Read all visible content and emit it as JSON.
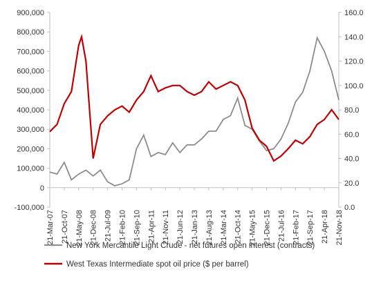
{
  "chart_data": {
    "type": "line",
    "title": "",
    "xlabel": "",
    "ylabel_left": "",
    "ylabel_right": "",
    "grid": false,
    "legend_position": "bottom",
    "x_ticks": [
      "21-Mar-07",
      "21-Oct-07",
      "21-May-08",
      "21-Dec-08",
      "21-Jul-09",
      "21-Feb-10",
      "21-Sep-10",
      "21-Apr-11",
      "21-Nov-11",
      "21-Jun-12",
      "21-Jan-13",
      "21-Aug-13",
      "21-Mar-14",
      "21-Oct-14",
      "21-May-15",
      "21-Dec-15",
      "21-Jul-16",
      "21-Feb-17",
      "21-Sep-17",
      "21-Apr-18",
      "21-Nov-18"
    ],
    "y_left": {
      "min": -100000,
      "max": 900000,
      "ticks": [
        -100000,
        0,
        100000,
        200000,
        300000,
        400000,
        500000,
        600000,
        700000,
        800000,
        900000
      ],
      "tick_labels": [
        "-100,000",
        "0",
        "100,000",
        "200,000",
        "300,000",
        "400,000",
        "500,000",
        "600,000",
        "700,000",
        "800,000",
        "900,000"
      ]
    },
    "y_right": {
      "min": 0,
      "max": 160,
      "ticks": [
        0,
        20,
        40,
        60,
        80,
        100,
        120,
        140,
        160
      ],
      "tick_labels": [
        "0.0",
        "20.0",
        "40.0",
        "60.0",
        "80.0",
        "100.0",
        "120.0",
        "140.0",
        "160.0"
      ]
    },
    "colors": {
      "open_interest": "#8c8c8c",
      "oil_price": "#c00000",
      "axis": "#bfbfbf"
    },
    "series": [
      {
        "name": "New York Mercantile Light Crude - net futures open interest (contracts)",
        "axis": "left",
        "x": [
          0,
          0.5,
          1,
          1.5,
          2,
          2.5,
          3,
          3.5,
          4,
          4.5,
          5,
          5.5,
          6,
          6.5,
          7,
          7.5,
          8,
          8.5,
          9,
          9.5,
          10,
          10.5,
          11,
          11.5,
          12,
          12.5,
          13,
          13.5,
          14,
          14.5,
          15,
          15.5,
          16,
          16.5,
          17,
          17.5,
          18,
          18.5,
          19,
          19.5,
          20
        ],
        "values": [
          80000,
          70000,
          130000,
          40000,
          70000,
          90000,
          60000,
          90000,
          30000,
          10000,
          20000,
          40000,
          200000,
          270000,
          160000,
          180000,
          170000,
          230000,
          180000,
          220000,
          220000,
          250000,
          290000,
          290000,
          350000,
          370000,
          460000,
          320000,
          300000,
          240000,
          190000,
          200000,
          250000,
          330000,
          440000,
          490000,
          600000,
          770000,
          700000,
          600000,
          450000
        ]
      },
      {
        "name": "West Texas Intermediate spot oil price ($ per barrel)",
        "axis": "right",
        "x": [
          0,
          0.5,
          1,
          1.5,
          2,
          2.2,
          2.5,
          3,
          3.5,
          4,
          4.5,
          5,
          5.5,
          6,
          6.5,
          7,
          7.5,
          8,
          8.5,
          9,
          9.5,
          10,
          10.5,
          11,
          11.5,
          12,
          12.5,
          13,
          13.5,
          14,
          14.5,
          15,
          15.5,
          16,
          16.5,
          17,
          17.5,
          18,
          18.5,
          19,
          19.5,
          20
        ],
        "values": [
          62,
          68,
          85,
          95,
          133,
          140,
          120,
          40,
          68,
          75,
          80,
          83,
          78,
          88,
          95,
          108,
          95,
          98,
          100,
          100,
          95,
          92,
          95,
          103,
          97,
          100,
          103,
          100,
          88,
          65,
          55,
          50,
          38,
          42,
          48,
          55,
          52,
          58,
          68,
          72,
          80,
          72
        ]
      }
    ]
  }
}
